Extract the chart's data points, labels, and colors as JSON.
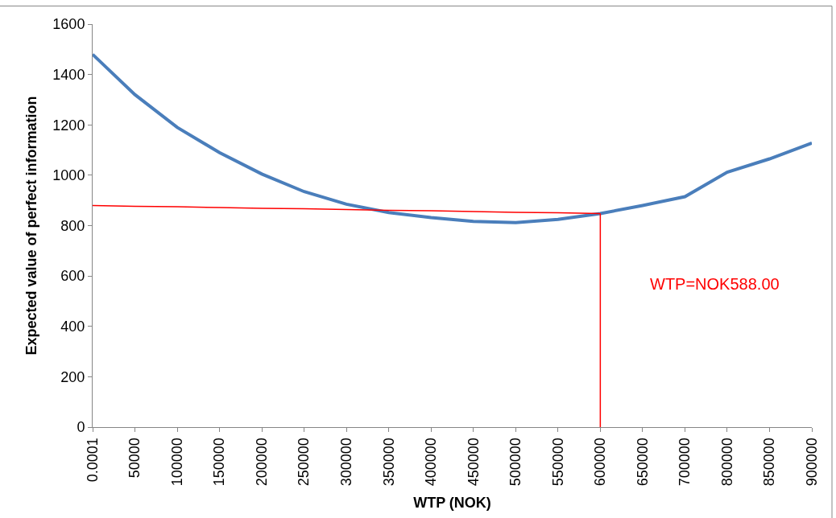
{
  "chart_data": {
    "type": "line",
    "xlabel": "WTP (NOK)",
    "ylabel": "Expected value of perfect information",
    "categories": [
      "0.0001",
      "50000",
      "100000",
      "150000",
      "200000",
      "250000",
      "300000",
      "350000",
      "400000",
      "450000",
      "500000",
      "550000",
      "600000",
      "650000",
      "700000",
      "800000",
      "850000",
      "900000"
    ],
    "series": [
      {
        "color": "#4a7ebb",
        "values": [
          1480,
          1320,
          1190,
          1090,
          1005,
          935,
          885,
          852,
          832,
          817,
          812,
          825,
          848,
          880,
          915,
          1012,
          1065,
          1128
        ]
      },
      {
        "color": "#ff0000",
        "values": [
          880,
          877,
          875,
          872,
          869,
          867,
          864,
          861,
          859,
          856,
          853,
          851,
          848,
          null,
          null,
          null,
          null,
          null
        ]
      }
    ],
    "ref_lines": [
      {
        "axis": "x",
        "value": "600000",
        "color": "#ff0000"
      }
    ],
    "annotations": [
      "WTP=NOK588.00"
    ],
    "ylim": [
      0,
      1600
    ],
    "yticks": [
      0,
      200,
      400,
      600,
      800,
      1000,
      1200,
      1400,
      1600
    ],
    "marker": "none"
  }
}
